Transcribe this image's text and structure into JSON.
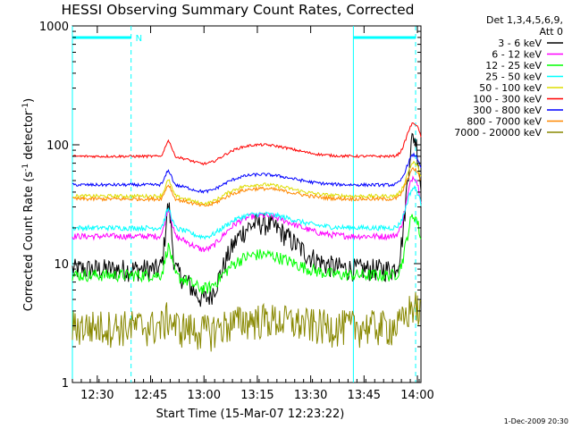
{
  "chart_data": {
    "type": "line",
    "title": "HESSI Observing Summary Count Rates, Corrected",
    "xlabel": "Start Time (15-Mar-07 12:23:22)",
    "ylabel": "Corrected Count Rate (s",
    "ylabel_sup1": "-1",
    "ylabel_mid": " detector",
    "ylabel_sup2": "-1",
    "ylabel_end": ")",
    "yscale": "log",
    "ylim": [
      1,
      1000
    ],
    "xlim_minutes_after_1223": [
      0,
      98
    ],
    "x_tick_labels": [
      "12:30",
      "12:45",
      "13:00",
      "13:15",
      "13:30",
      "13:45",
      "14:00"
    ],
    "x_tick_minutes": [
      7,
      22,
      37,
      52,
      67,
      82,
      97
    ],
    "y_tick_labels": [
      "1",
      "10",
      "100",
      "1000"
    ],
    "y_tick_values": [
      1,
      10,
      100,
      1000
    ],
    "legend_header": [
      "Det 1,3,4,5,6,9,",
      "Att 0"
    ],
    "night_bar_label": "N",
    "series": [
      {
        "name": "3 - 6 keV",
        "color": "#000000",
        "level": 9,
        "amp": 2.0,
        "noise": 0.22
      },
      {
        "name": "6 - 12 keV",
        "color": "#ff00ff",
        "level": 17,
        "amp": 0.9,
        "noise": 0.06
      },
      {
        "name": "12 - 25 keV",
        "color": "#00ff00",
        "level": 8,
        "amp": 0.9,
        "noise": 0.12
      },
      {
        "name": "25 - 50 keV",
        "color": "#00ffff",
        "level": 20,
        "amp": 0.6,
        "noise": 0.05
      },
      {
        "name": "50 - 100 keV",
        "color": "#dddd00",
        "level": 37,
        "amp": 0.5,
        "noise": 0.035
      },
      {
        "name": "100 - 300 keV",
        "color": "#ff0000",
        "level": 80,
        "amp": 0.5,
        "noise": 0.025
      },
      {
        "name": "300 - 800 keV",
        "color": "#0000ff",
        "level": 46,
        "amp": 0.45,
        "noise": 0.03
      },
      {
        "name": "800 - 7000 keV",
        "color": "#ff8800",
        "level": 35,
        "amp": 0.45,
        "noise": 0.035
      },
      {
        "name": "7000 - 20000 keV",
        "color": "#888800",
        "level": 3,
        "amp": 0.3,
        "noise": 0.35
      }
    ],
    "night_intervals_minutes": [
      [
        0,
        16.5
      ],
      [
        79,
        96.5
      ]
    ],
    "grid": false,
    "legend_position": "right"
  },
  "colors": {
    "background": "#ffffff",
    "axes": "#000000",
    "night_marker": "#00ffff"
  },
  "footer_stamp": "1-Dec-2009 20:30"
}
